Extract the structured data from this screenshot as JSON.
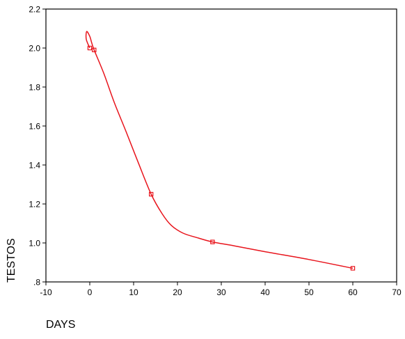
{
  "chart_data": {
    "type": "line",
    "title": "",
    "xlabel": "DAYS",
    "ylabel": "TESTOS",
    "xlim": [
      -10,
      70
    ],
    "ylim": [
      0.8,
      2.2
    ],
    "x_ticks": [
      -10,
      0,
      10,
      20,
      30,
      40,
      50,
      60,
      70
    ],
    "x_tick_labels": [
      "-10",
      "0",
      "10",
      "20",
      "30",
      "40",
      "50",
      "60",
      "70"
    ],
    "y_ticks": [
      0.8,
      1.0,
      1.2,
      1.4,
      1.6,
      1.8,
      2.0,
      2.2
    ],
    "y_tick_labels": [
      ".8",
      "1.0",
      "1.2",
      "1.4",
      "1.6",
      "1.8",
      "2.0",
      "2.2"
    ],
    "grid": false,
    "series": [
      {
        "color": "#e8141c",
        "smooth": true,
        "markers": {
          "x": [
            0,
            1,
            14,
            28,
            60
          ],
          "y": [
            2.0,
            1.99,
            1.25,
            1.005,
            0.87
          ]
        },
        "curve": {
          "x": [
            0,
            -0.8,
            -0.7,
            0,
            0.4,
            1,
            3.2,
            5.6,
            8.3,
            11.1,
            14,
            16.5,
            18.6,
            21.3,
            24.8,
            28,
            33,
            40,
            50,
            60
          ],
          "y": [
            2.0,
            2.045,
            2.085,
            2.06,
            2.03,
            1.99,
            1.87,
            1.72,
            1.57,
            1.41,
            1.25,
            1.15,
            1.09,
            1.05,
            1.025,
            1.005,
            0.985,
            0.955,
            0.915,
            0.87
          ]
        }
      }
    ]
  }
}
